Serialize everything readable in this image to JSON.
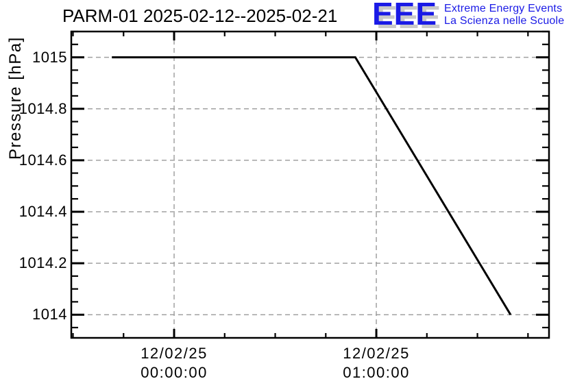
{
  "colors": {
    "background": "#ffffff",
    "axis": "#000000",
    "grid": "#a0a0a0",
    "logo_blue": "#1a1ae6",
    "logo_shadow": "#c9c9c9"
  },
  "logo": {
    "acronym": "EEE",
    "line1": "Extreme Energy Events",
    "line2": "La Scienza nelle Scuole"
  },
  "chart_data": {
    "type": "line",
    "title": "PARM-01 2025-02-12--2025-02-21",
    "xlabel": "",
    "ylabel": "Pressure [hPa]",
    "grid": {
      "show": true,
      "style": "dashed"
    },
    "legend": "none",
    "x_axis": {
      "unit": "hours relative to 12/02/25 00:00:00",
      "range": [
        -0.5085,
        1.854
      ],
      "minor_step": 0.25,
      "major_ticks": [
        {
          "h": 0,
          "label_lines": [
            "12/02/25",
            "00:00:00"
          ]
        },
        {
          "h": 1,
          "label_lines": [
            "12/02/25",
            "01:00:00"
          ]
        }
      ]
    },
    "y_axis": {
      "range": [
        1013.91,
        1015.1
      ],
      "minor_step": 0.05,
      "major_ticks": [
        {
          "v": 1015.0,
          "label": "1015"
        },
        {
          "v": 1014.8,
          "label": "1014.8"
        },
        {
          "v": 1014.6,
          "label": "1014.6"
        },
        {
          "v": 1014.4,
          "label": "1014.4"
        },
        {
          "v": 1014.2,
          "label": "1014.2"
        },
        {
          "v": 1014.0,
          "label": "1014"
        }
      ]
    },
    "series": [
      {
        "name": "Pressure",
        "color": "#000000",
        "line_width": 3,
        "points": [
          {
            "t": "11/02/25 23:41:30",
            "h": -0.308,
            "p": 1015.0
          },
          {
            "t": "12/02/25 00:53:45",
            "h": 0.896,
            "p": 1015.0
          },
          {
            "t": "12/02/25 01:39:50",
            "h": 1.664,
            "p": 1014.0
          }
        ]
      }
    ]
  }
}
